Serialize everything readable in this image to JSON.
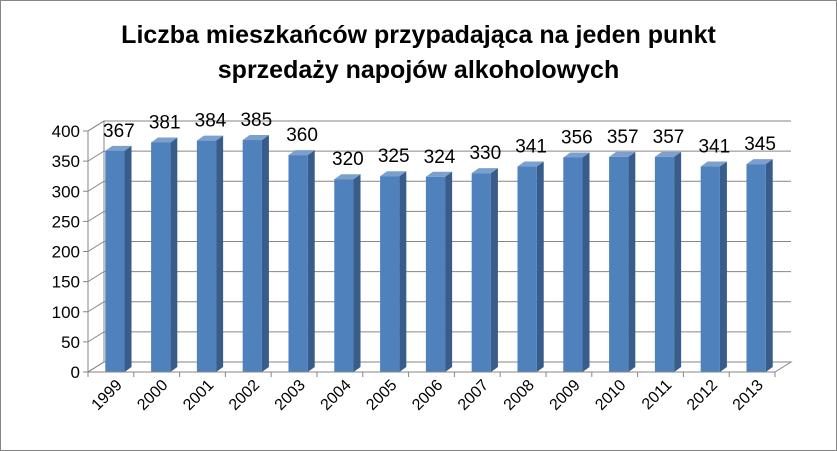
{
  "chart_data": {
    "type": "bar",
    "title_lines": [
      "Liczba mieszkańców przypadająca na jeden punkt",
      "sprzedaży napojów alkoholowych"
    ],
    "categories": [
      "1999",
      "2000",
      "2001",
      "2002",
      "2003",
      "2004",
      "2005",
      "2006",
      "2007",
      "2008",
      "2009",
      "2010",
      "2011",
      "2012",
      "2013"
    ],
    "values": [
      367,
      381,
      384,
      385,
      360,
      320,
      325,
      324,
      330,
      341,
      356,
      357,
      357,
      341,
      345
    ],
    "ylim": [
      0,
      400
    ],
    "yticks": [
      0,
      50,
      100,
      150,
      200,
      250,
      300,
      350,
      400
    ],
    "grid": true,
    "legend": "none",
    "colors": {
      "bar_front": "#4F81BD",
      "bar_side": "#385D8A",
      "bar_top": "#7BA0CD",
      "grid": "#868686",
      "wall": "#ffffff"
    }
  }
}
